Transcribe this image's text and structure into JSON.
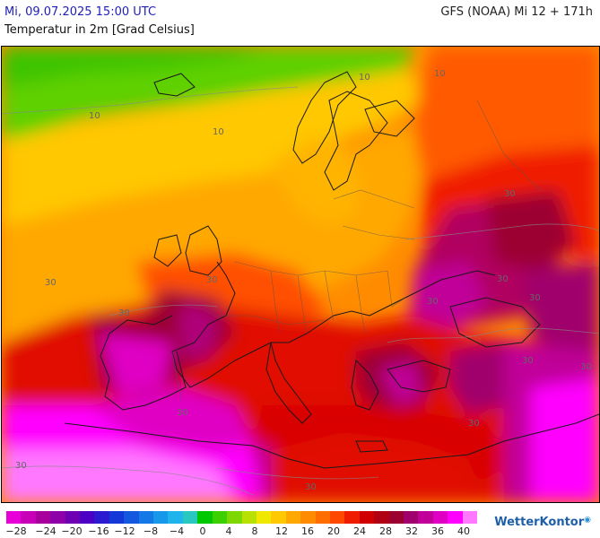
{
  "header": {
    "datetime": "Mi, 09.07.2025 15:00 UTC",
    "model": "GFS (NOAA) Mi 12 + 171h",
    "subtitle": "Temperatur in 2m [Grad Celsius]"
  },
  "map": {
    "contour_labels": [
      "10",
      "10",
      "10",
      "10",
      "30",
      "30",
      "30",
      "30",
      "30",
      "30",
      "30",
      "30",
      "30",
      "30",
      "30",
      "30",
      "30"
    ]
  },
  "legend": {
    "colors": [
      "#e800d8",
      "#c800b8",
      "#a8009c",
      "#8e00a8",
      "#6e00b4",
      "#4c00c4",
      "#2c1ad0",
      "#1438d8",
      "#1458e0",
      "#1478e6",
      "#1898ea",
      "#20b4ec",
      "#28c8c0",
      "#00c800",
      "#3cd000",
      "#7cd800",
      "#b8e000",
      "#f0e800",
      "#ffc800",
      "#ffa800",
      "#ff8c00",
      "#ff6c00",
      "#ff4800",
      "#f01c00",
      "#d00000",
      "#b00014",
      "#9c0030",
      "#a0006c",
      "#c00098",
      "#e000c4",
      "#ff00ff",
      "#ff78ff"
    ],
    "labels": [
      "−28",
      "−24",
      "−20",
      "−16",
      "−12",
      "−8",
      "−4",
      "0",
      "4",
      "8",
      "12",
      "16",
      "20",
      "24",
      "28",
      "32",
      "36",
      "40"
    ]
  },
  "brand": {
    "name": "WetterKontor"
  }
}
